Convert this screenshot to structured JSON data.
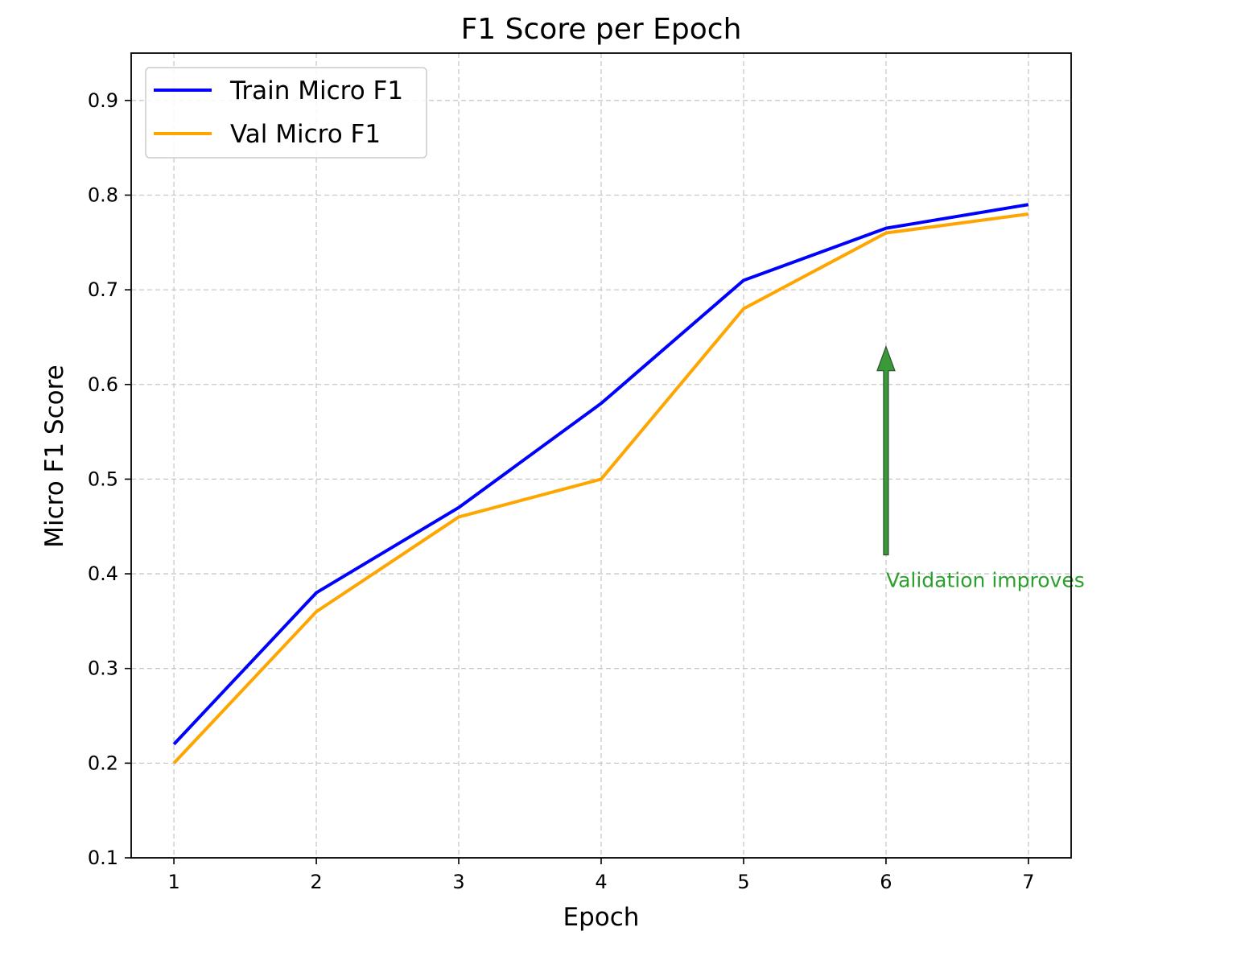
{
  "chart_data": {
    "type": "line",
    "title": "F1 Score per Epoch",
    "xlabel": "Epoch",
    "ylabel": "Micro F1 Score",
    "x": [
      1,
      2,
      3,
      4,
      5,
      6,
      7
    ],
    "xlim": [
      0.7,
      7.3
    ],
    "ylim": [
      0.1,
      0.95
    ],
    "xticks": [
      1,
      2,
      3,
      4,
      5,
      6,
      7
    ],
    "yticks": [
      0.1,
      0.2,
      0.3,
      0.4,
      0.5,
      0.6,
      0.7,
      0.8,
      0.9
    ],
    "grid": true,
    "legend_position": "top-left",
    "series": [
      {
        "name": "Train Micro F1",
        "color": "#0000ff",
        "values": [
          0.22,
          0.38,
          0.47,
          0.58,
          0.71,
          0.765,
          0.79
        ]
      },
      {
        "name": "Val Micro F1",
        "color": "#ffa500",
        "values": [
          0.2,
          0.36,
          0.46,
          0.5,
          0.68,
          0.76,
          0.78
        ]
      }
    ],
    "annotations": [
      {
        "text": "Validation improves",
        "color": "#2ca02c",
        "arrow_color": "#3a9a3a",
        "xy": [
          6,
          0.64
        ],
        "xytext": [
          6,
          0.42
        ]
      }
    ]
  }
}
